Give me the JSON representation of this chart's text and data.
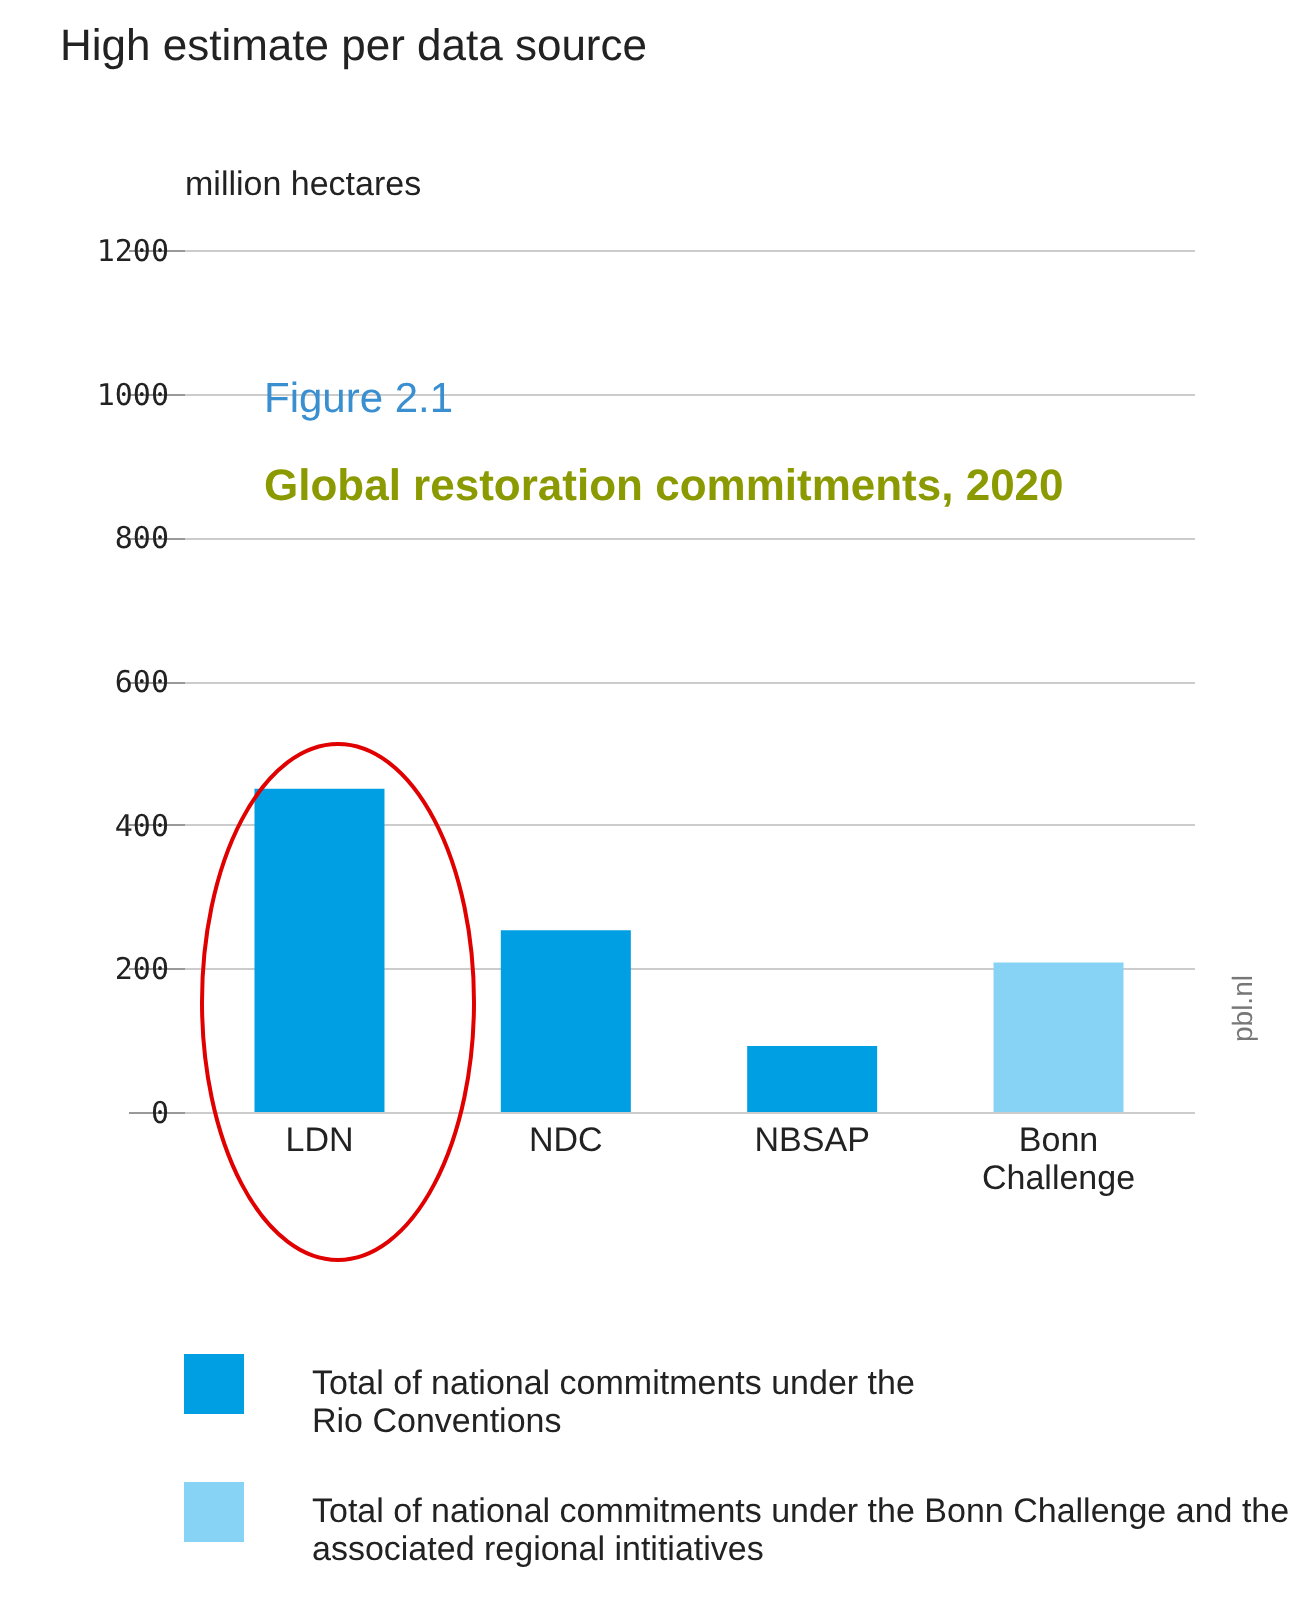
{
  "chart_data": {
    "type": "bar",
    "title": "High estimate per data source",
    "ylabel": "million hectares",
    "annotations": [
      "Figure 2.1",
      "Global restoration commitments, 2020",
      "pbl.nl"
    ],
    "categories": [
      "LDN",
      "NDC",
      "NBSAP",
      "Bonn Challenge"
    ],
    "series": [
      {
        "name": "Total of national commitments under the Rio Conventions",
        "color": "#009fe3",
        "values": [
          450,
          253,
          92,
          null
        ]
      },
      {
        "name": "Total of national commitments under the Bonn Challenge and the associated regional intitiatives",
        "color": "#87d3f5",
        "values": [
          null,
          null,
          null,
          208
        ]
      }
    ],
    "ylim": [
      0,
      1200
    ],
    "yticks": [
      0,
      200,
      400,
      600,
      800,
      1000,
      1200
    ],
    "grid": "y",
    "legend": "bottom"
  }
}
